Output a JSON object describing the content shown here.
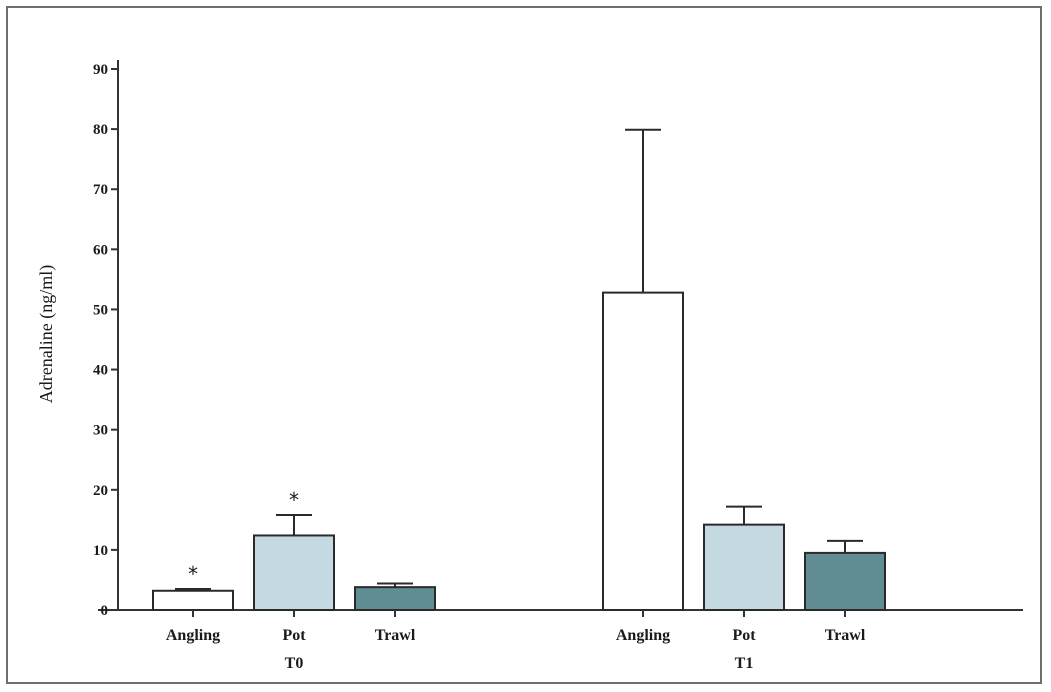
{
  "chart_data": {
    "type": "bar",
    "ylabel": "Adrenaline (ng/ml)",
    "xlabel": "",
    "title": "",
    "ylim": [
      0,
      90
    ],
    "yticks": [
      0,
      10,
      20,
      30,
      40,
      50,
      60,
      70,
      80,
      90
    ],
    "grid": false,
    "legend": "none",
    "groups": [
      {
        "label": "T0",
        "bars": [
          {
            "category": "Angling",
            "value": 3.2,
            "error": 0.3,
            "annotation": "*",
            "color": "#ffffff"
          },
          {
            "category": "Pot",
            "value": 12.4,
            "error": 3.4,
            "annotation": "*",
            "color": "#c5d9e3"
          },
          {
            "category": "Trawl",
            "value": 3.8,
            "error": 0.6,
            "annotation": "",
            "color": "#5f8d93"
          }
        ]
      },
      {
        "label": "T1",
        "bars": [
          {
            "category": "Angling",
            "value": 52.8,
            "error": 27.1,
            "annotation": "",
            "color": "#ffffff"
          },
          {
            "category": "Pot",
            "value": 14.2,
            "error": 3.0,
            "annotation": "",
            "color": "#c5d9e3"
          },
          {
            "category": "Trawl",
            "value": 9.5,
            "error": 2.0,
            "annotation": "",
            "color": "#5f8d93"
          }
        ]
      }
    ]
  }
}
